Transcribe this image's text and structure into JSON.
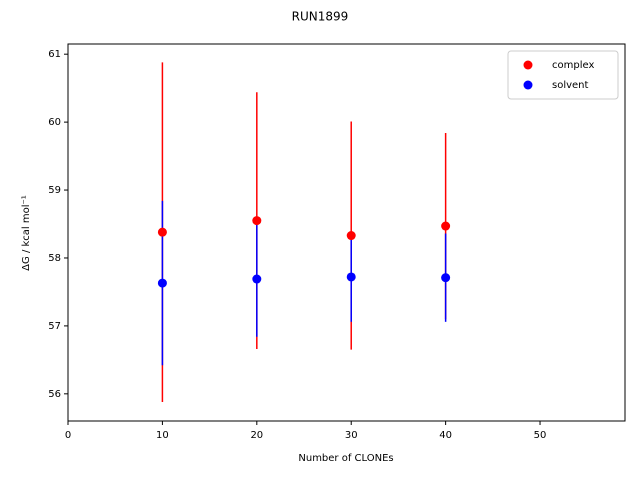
{
  "chart_data": {
    "type": "errorbar_scatter",
    "title": "RUN1899",
    "x_label": "Number of CLONEs",
    "y_label": "ΔG / kcal mol⁻¹",
    "x": [
      10,
      20,
      30,
      40
    ],
    "series": [
      {
        "name": "complex",
        "color": "#ff0000",
        "values": [
          58.38,
          58.55,
          58.33,
          58.47
        ],
        "errors": [
          2.5,
          1.89,
          1.68,
          1.37
        ]
      },
      {
        "name": "solvent",
        "color": "#0000ff",
        "values": [
          57.63,
          57.69,
          57.72,
          57.71
        ],
        "errors": [
          1.21,
          0.85,
          0.66,
          0.65
        ]
      }
    ],
    "xlim": [
      0,
      59
    ],
    "xticks": [
      0,
      10,
      20,
      30,
      40,
      50
    ],
    "ylim": [
      55.6,
      61.15
    ],
    "yticks": [
      56,
      57,
      58,
      59,
      60,
      61
    ],
    "legend": "upper right",
    "grid": false
  }
}
